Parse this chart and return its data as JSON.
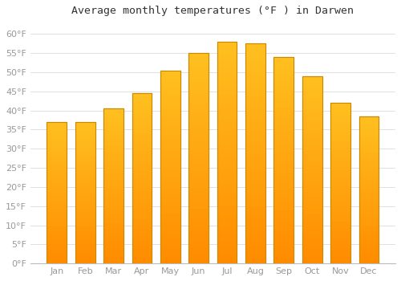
{
  "title": "Average monthly temperatures (°F ) in Darwen",
  "months": [
    "Jan",
    "Feb",
    "Mar",
    "Apr",
    "May",
    "Jun",
    "Jul",
    "Aug",
    "Sep",
    "Oct",
    "Nov",
    "Dec"
  ],
  "values": [
    37,
    37,
    40.5,
    44.5,
    50.5,
    55,
    58,
    57.5,
    54,
    49,
    42,
    38.5
  ],
  "bar_color_top": "#FFC020",
  "bar_color_bottom": "#FF8C00",
  "bar_edge_color": "#CC8800",
  "background_color": "#FFFFFF",
  "grid_color": "#E0E0E0",
  "ylim": [
    0,
    63
  ],
  "yticks": [
    0,
    5,
    10,
    15,
    20,
    25,
    30,
    35,
    40,
    45,
    50,
    55,
    60
  ],
  "title_fontsize": 9.5,
  "tick_fontsize": 8,
  "tick_label_color": "#999999",
  "bar_width": 0.7,
  "figsize": [
    5.0,
    3.5
  ],
  "dpi": 100
}
